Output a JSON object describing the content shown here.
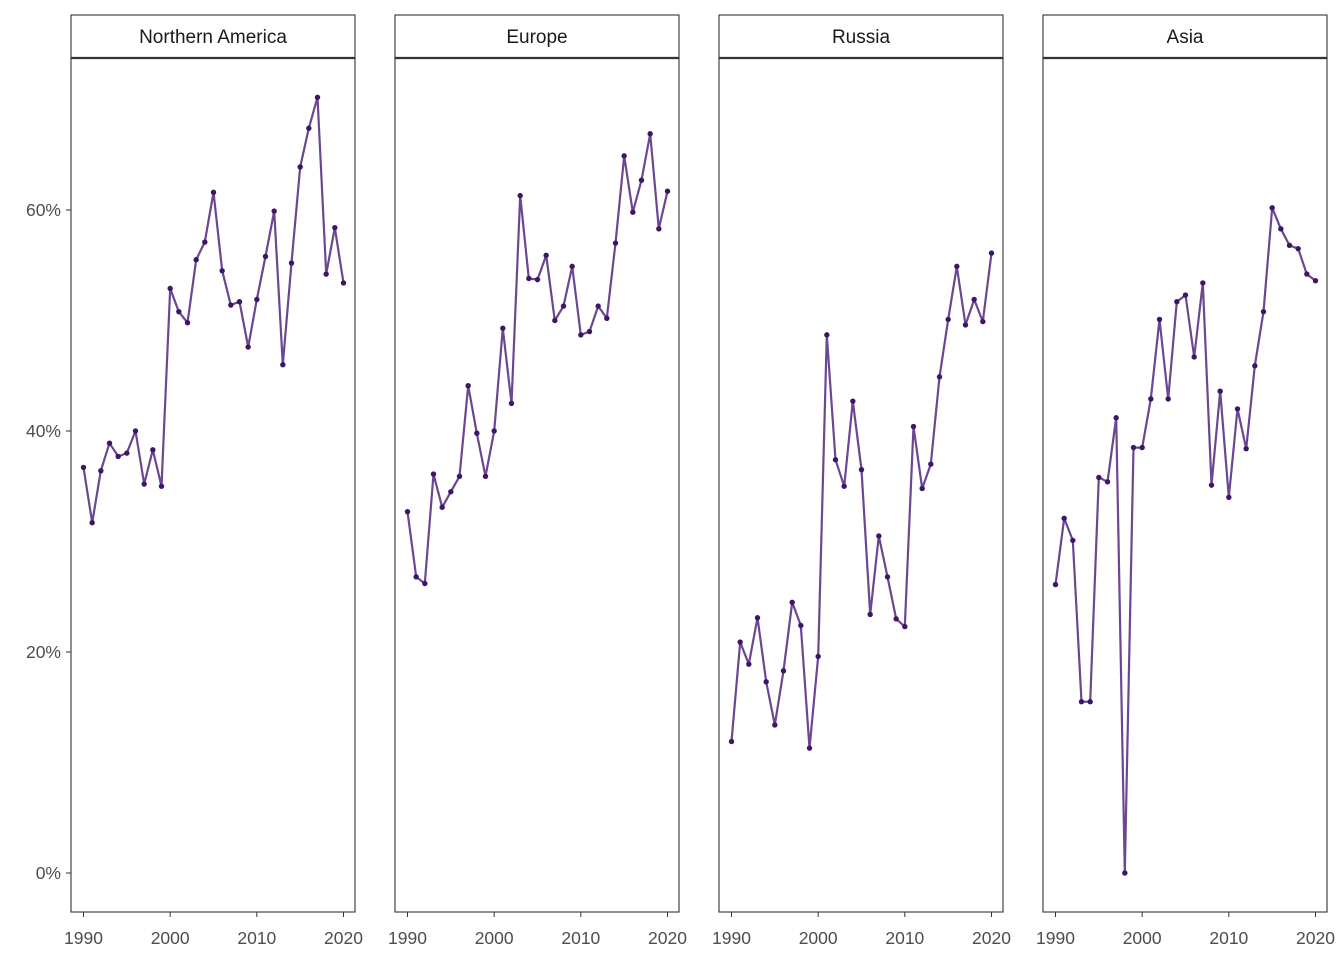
{
  "chart_data": {
    "type": "line",
    "facets": [
      "Northern America",
      "Europe",
      "Russia",
      "Asia"
    ],
    "x": [
      1990,
      1991,
      1992,
      1993,
      1994,
      1995,
      1996,
      1997,
      1998,
      1999,
      2000,
      2001,
      2002,
      2003,
      2004,
      2005,
      2006,
      2007,
      2008,
      2009,
      2010,
      2011,
      2012,
      2013,
      2014,
      2015,
      2016,
      2017,
      2018,
      2019,
      2020
    ],
    "series": [
      {
        "facet": "Northern America",
        "values": [
          36.7,
          31.7,
          36.4,
          38.9,
          37.7,
          38.0,
          40.0,
          35.2,
          38.3,
          35.0,
          52.9,
          50.8,
          49.8,
          55.5,
          57.1,
          61.6,
          54.5,
          51.4,
          51.7,
          47.6,
          51.9,
          55.8,
          59.9,
          46.0,
          55.2,
          63.9,
          67.4,
          70.2,
          54.2,
          58.4,
          53.4
        ]
      },
      {
        "facet": "Europe",
        "values": [
          32.7,
          26.8,
          26.2,
          36.1,
          33.1,
          34.5,
          35.9,
          44.1,
          39.8,
          35.9,
          40.0,
          49.3,
          42.5,
          61.3,
          53.8,
          53.7,
          55.9,
          50.0,
          51.3,
          54.9,
          48.7,
          49.0,
          51.3,
          50.2,
          57.0,
          64.9,
          59.8,
          62.7,
          66.9,
          58.3,
          61.7
        ]
      },
      {
        "facet": "Russia",
        "values": [
          11.9,
          20.9,
          18.9,
          23.1,
          17.3,
          13.4,
          18.3,
          24.5,
          22.4,
          11.3,
          19.6,
          48.7,
          37.4,
          35.0,
          42.7,
          36.5,
          23.4,
          30.5,
          26.8,
          23.0,
          22.3,
          40.4,
          34.8,
          37.0,
          44.9,
          50.1,
          54.9,
          49.6,
          51.9,
          49.9,
          56.1
        ]
      },
      {
        "facet": "Asia",
        "values": [
          26.1,
          32.1,
          30.1,
          15.5,
          15.5,
          35.8,
          35.4,
          41.2,
          0.0,
          38.5,
          38.5,
          42.9,
          50.1,
          42.9,
          51.7,
          52.3,
          46.7,
          53.4,
          35.1,
          43.6,
          34.0,
          42.0,
          38.4,
          45.9,
          50.8,
          60.2,
          58.3,
          56.8,
          56.5,
          54.2,
          53.6
        ]
      }
    ],
    "xlabel": "",
    "ylabel": "",
    "xlim": [
      1989,
      2021
    ],
    "ylim": [
      -3.2,
      73.5
    ],
    "x_ticks": [
      1990,
      2000,
      2010,
      2020
    ],
    "x_tick_labels": [
      "1990",
      "2000",
      "2010",
      "2020"
    ],
    "y_ticks": [
      0,
      20,
      40,
      60
    ],
    "y_tick_labels": [
      "0%",
      "20%",
      "40%",
      "60%"
    ],
    "grid": false,
    "legend": "none",
    "colors": {
      "line": "#6a4791",
      "point": "#3e1668",
      "strip_background": "#ffffff",
      "strip_border": "#333333",
      "panel_border": "#333333",
      "axis_text": "#4d4d4d",
      "strip_text": "#1a1a1a"
    }
  }
}
